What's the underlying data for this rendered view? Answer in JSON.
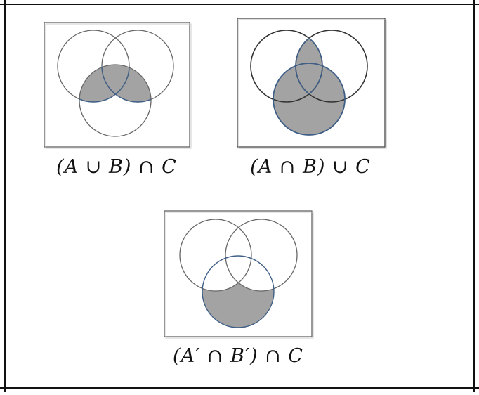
{
  "colors": {
    "shade": "#a3a3a3",
    "outline_blue": "#3f5f87",
    "outline_gray": "#5a5a5a",
    "rule": "#111111"
  },
  "diagrams": [
    {
      "caption": "(A ∪ B) ∩ C",
      "shaded_region": "(A ∪ B) ∩ C"
    },
    {
      "caption": "(A ∩ B) ∪ C",
      "shaded_region": "(A ∩ B) ∪ C"
    },
    {
      "caption": "(A′ ∩ B′) ∩ C",
      "shaded_region": "(A′ ∩ B′) ∩ C"
    }
  ]
}
